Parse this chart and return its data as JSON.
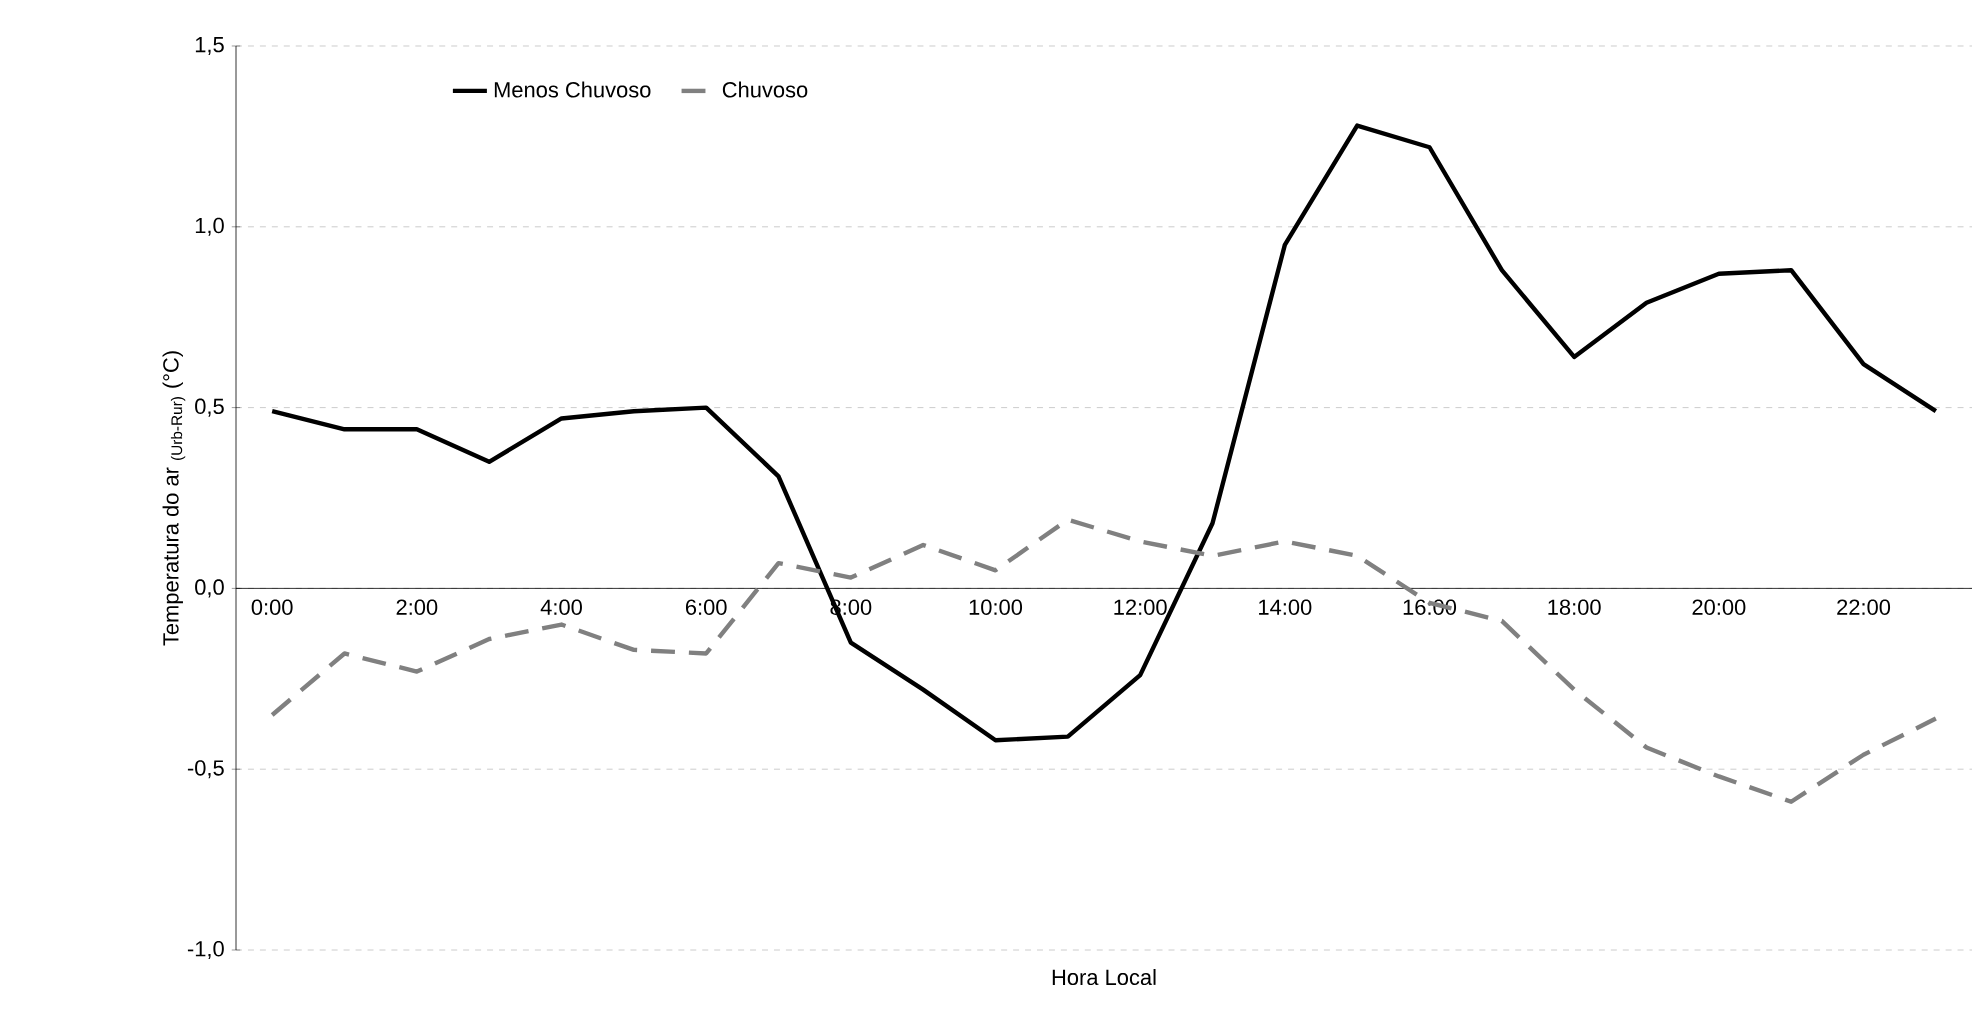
{
  "chart_data": {
    "type": "line",
    "xlabel": "Hora Local",
    "ylabel": "Temperatura do ar $_{(Urb-Rur)}$ (°C)",
    "categories": [
      "0:00",
      null,
      "2:00",
      null,
      "4:00",
      null,
      "6:00",
      null,
      "8:00",
      null,
      "10:00",
      null,
      "12:00",
      null,
      "14:00",
      null,
      "16:00",
      null,
      "18:00",
      null,
      "20:00",
      null,
      "22:00",
      null
    ],
    "series": [
      {
        "name": "Menos Chuvoso",
        "color": "#000000",
        "line_style": "solid",
        "values": [
          0.49,
          0.44,
          0.44,
          0.35,
          0.47,
          0.49,
          0.5,
          0.31,
          -0.15,
          -0.28,
          -0.42,
          -0.41,
          -0.24,
          0.18,
          0.95,
          1.28,
          1.22,
          0.88,
          0.64,
          0.79,
          0.87,
          0.88,
          0.62,
          0.49
        ]
      },
      {
        "name": "Chuvoso",
        "color": "#808080",
        "line_style": "dashed",
        "values": [
          -0.35,
          -0.18,
          -0.23,
          -0.14,
          -0.1,
          -0.17,
          -0.18,
          0.07,
          0.03,
          0.12,
          0.05,
          0.19,
          0.13,
          0.09,
          0.13,
          0.09,
          -0.04,
          -0.09,
          -0.28,
          -0.44,
          -0.52,
          -0.59,
          -0.46,
          -0.36
        ]
      }
    ],
    "ylim": [
      -1.0,
      1.5
    ],
    "yticks": [
      {
        "value": -1.0,
        "label": "-1,0"
      },
      {
        "value": -0.5,
        "label": "-0,5"
      },
      {
        "value": 0.0,
        "label": "0,0"
      },
      {
        "value": 0.5,
        "label": "0,5"
      },
      {
        "value": 1.0,
        "label": "1,0"
      },
      {
        "value": 1.5,
        "label": "1,5"
      }
    ],
    "grid": "y",
    "legend": "top left",
    "marker": "none"
  }
}
